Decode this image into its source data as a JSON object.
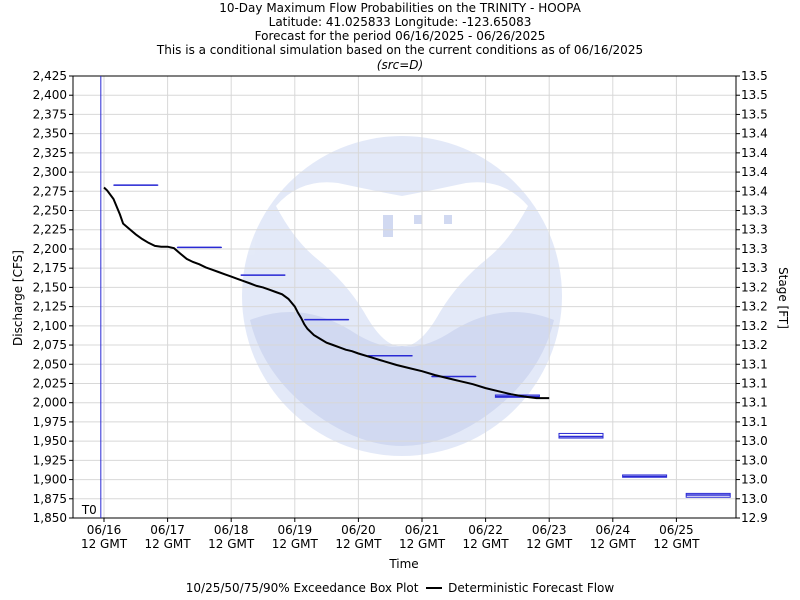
{
  "header": {
    "title": "10-Day Maximum Flow Probabilities on the TRINITY - HOOPA",
    "location": "Latitude: 41.025833 Longitude: -123.65083",
    "period": "Forecast for the period 06/16/2025 - 06/26/2025",
    "note": "This is a conditional simulation based on the current conditions as of 06/16/2025",
    "source": "(src=D)"
  },
  "colors": {
    "box": "#2a2ad4",
    "forecast": "#000000",
    "grid": "#d8d8d8",
    "t0_line": "#2a2ad4",
    "watermark": "#c9d3ef"
  },
  "legend": {
    "box_label": "10/25/50/75/90% Exceedance Box Plot",
    "line_label": "Deterministic Forecast Flow"
  },
  "chart_data": {
    "type": "box",
    "xlabel": "Time",
    "ylabel": "Discharge [CFS]",
    "ylabel_right": "Stage [FT]",
    "ylim": [
      1850,
      2425
    ],
    "y_ticks": [
      "1,850",
      "1,875",
      "1,900",
      "1,925",
      "1,950",
      "1,975",
      "2,000",
      "2,025",
      "2,050",
      "2,075",
      "2,100",
      "2,125",
      "2,150",
      "2,175",
      "2,200",
      "2,225",
      "2,250",
      "2,275",
      "2,300",
      "2,325",
      "2,350",
      "2,375",
      "2,400",
      "2,425"
    ],
    "right_ticks": [
      "12.9",
      "13.0",
      "13.0",
      "13.0",
      "13.0",
      "13.1",
      "13.1",
      "13.1",
      "13.1",
      "13.2",
      "13.2",
      "13.2",
      "13.2",
      "13.3",
      "13.3",
      "13.3",
      "13.3",
      "13.4",
      "13.4",
      "13.4",
      "13.4",
      "13.5",
      "13.5",
      "13.5"
    ],
    "x_ticks": [
      {
        "day": "06/16",
        "time": "12 GMT"
      },
      {
        "day": "06/17",
        "time": "12 GMT"
      },
      {
        "day": "06/18",
        "time": "12 GMT"
      },
      {
        "day": "06/19",
        "time": "12 GMT"
      },
      {
        "day": "06/20",
        "time": "12 GMT"
      },
      {
        "day": "06/21",
        "time": "12 GMT"
      },
      {
        "day": "06/22",
        "time": "12 GMT"
      },
      {
        "day": "06/23",
        "time": "12 GMT"
      },
      {
        "day": "06/24",
        "time": "12 GMT"
      },
      {
        "day": "06/25",
        "time": "12 GMT"
      }
    ],
    "t0_label": "T0",
    "t0_day": -0.05,
    "boxes": [
      {
        "day": 0.5,
        "p10": 2283,
        "p25": 2283,
        "p50": 2283,
        "p75": 2283,
        "p90": 2283
      },
      {
        "day": 1.5,
        "p10": 2202,
        "p25": 2202,
        "p50": 2202,
        "p75": 2202,
        "p90": 2202
      },
      {
        "day": 2.5,
        "p10": 2166,
        "p25": 2166,
        "p50": 2166,
        "p75": 2166,
        "p90": 2166
      },
      {
        "day": 3.5,
        "p10": 2108,
        "p25": 2108,
        "p50": 2108,
        "p75": 2108,
        "p90": 2108
      },
      {
        "day": 4.5,
        "p10": 2061,
        "p25": 2061,
        "p50": 2061,
        "p75": 2061,
        "p90": 2061
      },
      {
        "day": 5.5,
        "p10": 2034,
        "p25": 2034,
        "p50": 2034,
        "p75": 2034,
        "p90": 2034
      },
      {
        "day": 6.5,
        "p10": 2007,
        "p25": 2007,
        "p50": 2008,
        "p75": 2010,
        "p90": 2010
      },
      {
        "day": 7.5,
        "p10": 1954,
        "p25": 1954,
        "p50": 1956,
        "p75": 1960,
        "p90": 1960
      },
      {
        "day": 8.5,
        "p10": 1903,
        "p25": 1903,
        "p50": 1904,
        "p75": 1906,
        "p90": 1906
      },
      {
        "day": 9.5,
        "p10": 1877,
        "p25": 1877,
        "p50": 1880,
        "p75": 1882,
        "p90": 1882
      }
    ],
    "forecast": {
      "day": [
        0.0,
        0.05,
        0.15,
        0.25,
        0.3,
        0.4,
        0.5,
        0.6,
        0.7,
        0.8,
        0.9,
        1.0,
        1.1,
        1.2,
        1.3,
        1.4,
        1.5,
        1.6,
        1.7,
        1.8,
        1.9,
        2.0,
        2.1,
        2.2,
        2.3,
        2.4,
        2.5,
        2.6,
        2.7,
        2.8,
        2.9,
        3.0,
        3.05,
        3.1,
        3.15,
        3.2,
        3.3,
        3.4,
        3.5,
        3.6,
        3.7,
        3.8,
        3.9,
        4.0,
        4.2,
        4.4,
        4.6,
        4.8,
        5.0,
        5.2,
        5.4,
        5.6,
        5.8,
        6.0,
        6.2,
        6.4,
        6.6,
        6.8,
        6.95,
        7.0
      ],
      "flow": [
        2280,
        2276,
        2265,
        2245,
        2233,
        2226,
        2219,
        2213,
        2208,
        2204,
        2203,
        2203,
        2201,
        2194,
        2187,
        2183,
        2180,
        2176,
        2173,
        2170,
        2167,
        2164,
        2161,
        2158,
        2155,
        2152,
        2150,
        2147,
        2144,
        2141,
        2135,
        2125,
        2117,
        2110,
        2102,
        2096,
        2088,
        2083,
        2078,
        2075,
        2072,
        2069,
        2067,
        2064,
        2059,
        2054,
        2049,
        2045,
        2041,
        2036,
        2032,
        2028,
        2024,
        2019,
        2015,
        2011,
        2008,
        2006,
        2006,
        2006
      ]
    }
  }
}
